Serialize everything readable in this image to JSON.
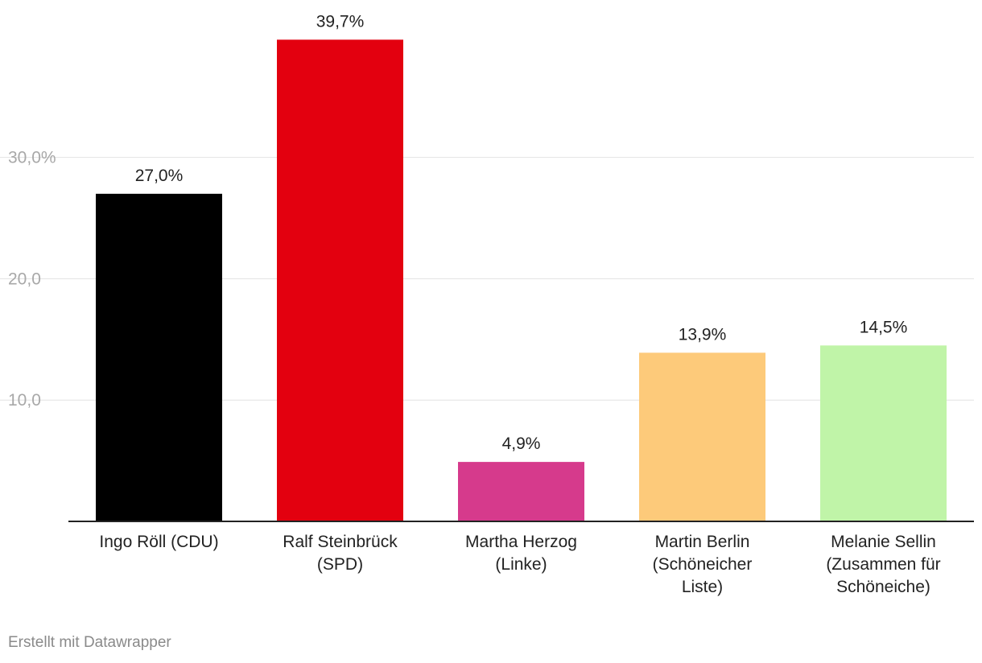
{
  "chart_data": {
    "type": "bar",
    "categories": [
      "Ingo Röll (CDU)",
      "Ralf Steinbrück (SPD)",
      "Martha Herzog (Linke)",
      "Martin Berlin (Schöneicher Liste)",
      "Melanie Sellin (Zusammen für Schöneiche)"
    ],
    "category_lines": [
      [
        "Ingo Röll (CDU)"
      ],
      [
        "Ralf Steinbrück",
        "(SPD)"
      ],
      [
        "Martha Herzog",
        "(Linke)"
      ],
      [
        "Martin Berlin",
        "(Schöneicher",
        "Liste)"
      ],
      [
        "Melanie Sellin",
        "(Zusammen für",
        "Schöneiche)"
      ]
    ],
    "values": [
      27.0,
      39.7,
      4.9,
      13.9,
      14.5
    ],
    "value_labels": [
      "27,0%",
      "39,7%",
      "4,9%",
      "13,9%",
      "14,5%"
    ],
    "colors": [
      "#000000",
      "#e3000f",
      "#d63a8c",
      "#fdca7a",
      "#c0f4a8"
    ],
    "yticks": [
      10,
      20,
      30
    ],
    "ytick_labels": [
      "10,0",
      "20,0",
      "30,0%"
    ],
    "ylim": [
      0,
      40
    ],
    "grid": true,
    "title": "",
    "xlabel": "",
    "ylabel": ""
  },
  "footer": {
    "credit": "Erstellt mit Datawrapper"
  }
}
